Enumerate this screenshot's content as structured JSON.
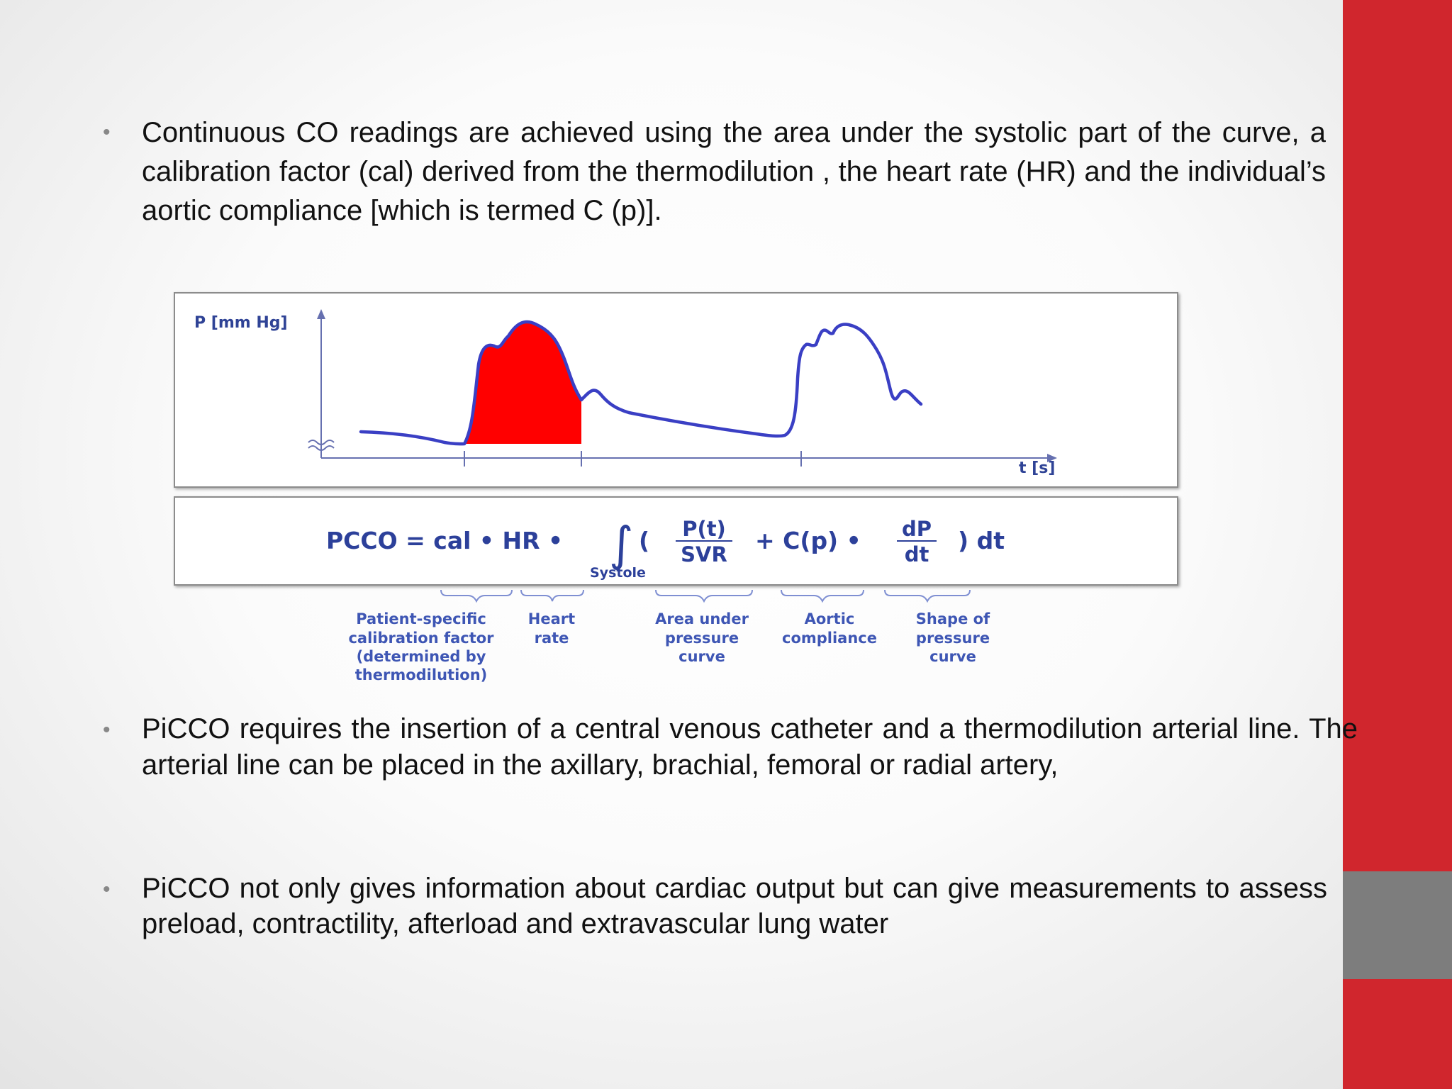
{
  "bullets": [
    {
      "text": "Continuous CO readings are achieved using the area under the systolic part of the curve, a calibration factor (cal) derived from the thermodilution , the heart rate (HR) and the individual’s aortic compliance [which is termed C (p)]."
    },
    {
      "text": "PiCCO requires the insertion of a central venous catheter and a thermodilution arterial line. The arterial line can be placed in the axillary, brachial, femoral or radial artery,"
    },
    {
      "text": "PiCCO not only gives information about cardiac output but can give measurements to assess preload, contractility, afterload and extravascular lung water"
    }
  ],
  "figure": {
    "y_axis_label": "P [mm Hg]",
    "x_axis_label": "t [s]",
    "formula": {
      "lhs": "PCCO = cal • HR •",
      "integral_sign": "∫",
      "open_paren": "(",
      "numerator": "P(t)",
      "denominator": "SVR",
      "middle": "+ C(p) •",
      "deriv_num": "dP",
      "deriv_den": "dt",
      "close": ") dt",
      "subscript": "Systole"
    },
    "captions": {
      "calibration": [
        "Patient-specific",
        "calibration factor",
        "(determined by",
        "thermodilution)"
      ],
      "heart_rate": [
        "Heart",
        "rate"
      ],
      "area": [
        "Area under",
        "pressure",
        "curve"
      ],
      "compliance": [
        "Aortic",
        "compliance"
      ],
      "shape": [
        "Shape of",
        "pressure",
        "curve"
      ]
    }
  },
  "colors": {
    "side_bar": "#d0262d",
    "side_bar_block": "#7d7d7d",
    "curve": "#3a3fc4",
    "systolic_fill": "#ff0000"
  }
}
